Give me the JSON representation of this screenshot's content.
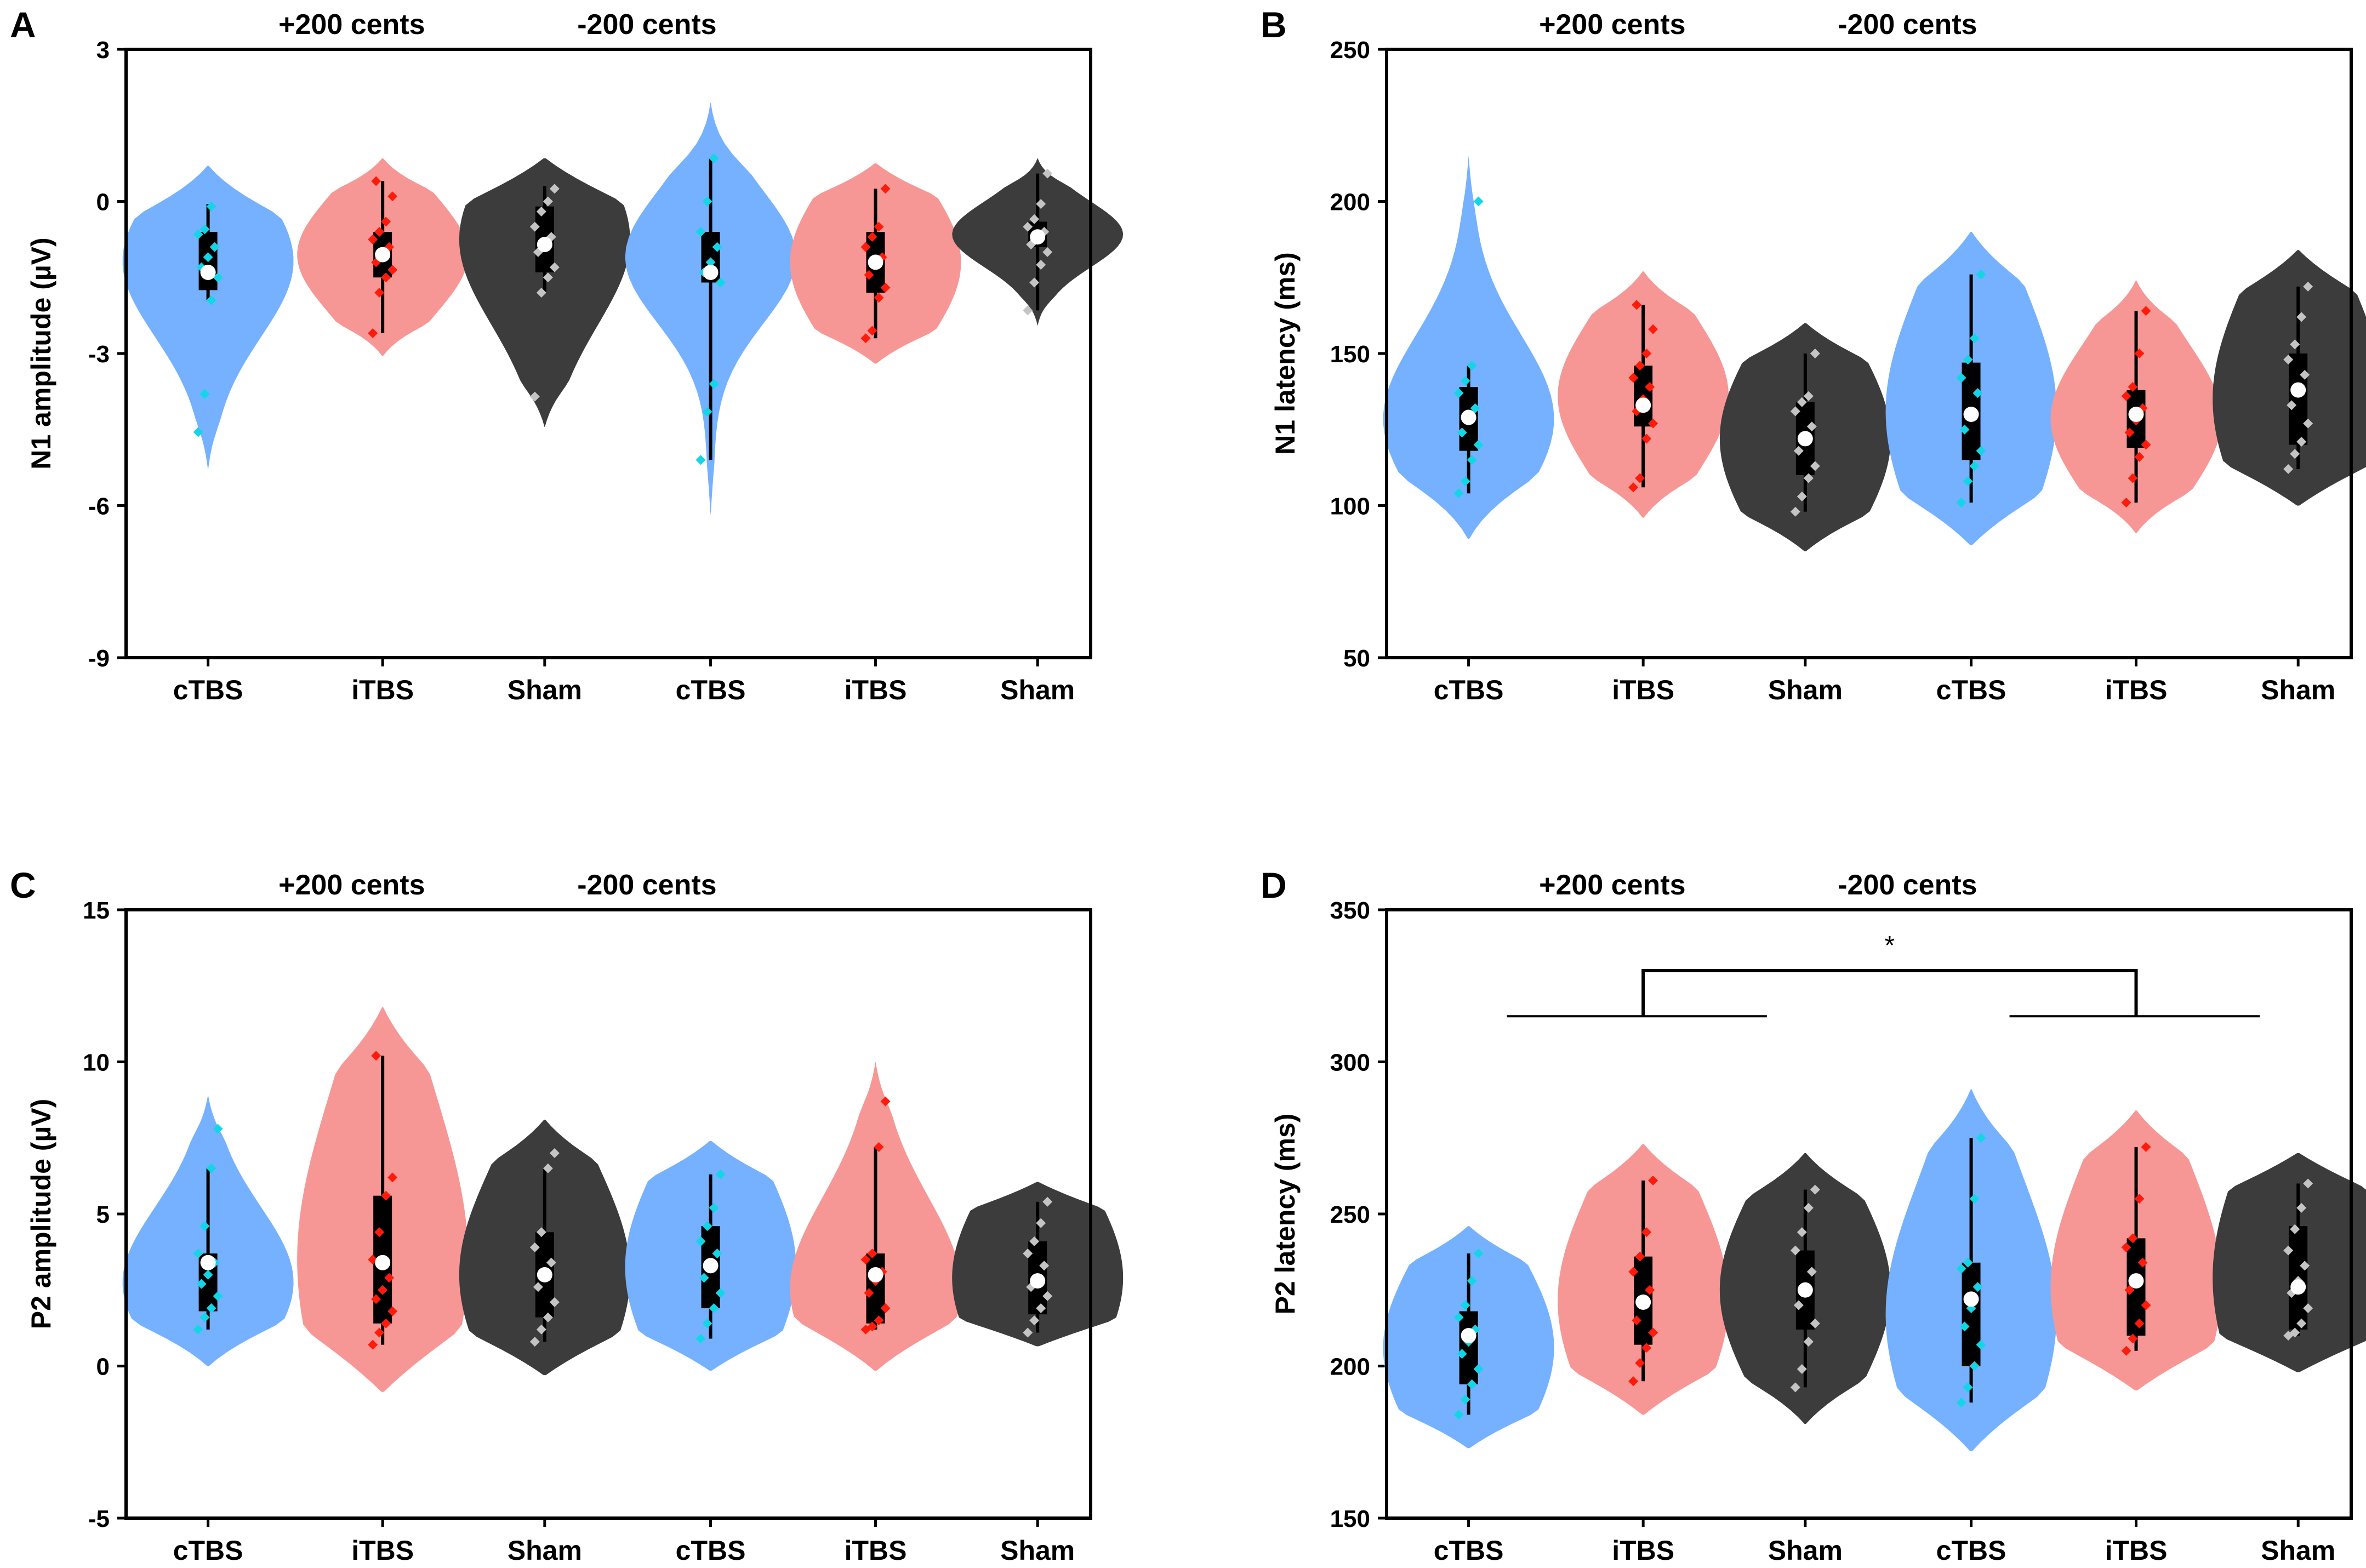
{
  "colors": {
    "ctbs_fill": "#75b1ff",
    "itbs_fill": "#f79795",
    "sham_fill": "#3c3c3c",
    "ctbs_dot": "#12d6e6",
    "itbs_dot": "#ff1a0a",
    "sham_dot": "#c4c4c4",
    "mean_dot": "#ffffff",
    "box": "#000000",
    "axis": "#000000"
  },
  "chart_data": [
    {
      "panel_label": "A",
      "type": "violin",
      "ylabel": "N1 amplitude (µV)",
      "ylim": [
        -9,
        3
      ],
      "yticks": [
        3,
        0,
        -3,
        -6,
        -9
      ],
      "ytick_labels": [
        "3",
        "0",
        "-3",
        "-6",
        "-9"
      ],
      "group_headers": [
        "+200 cents",
        "-200 cents"
      ],
      "categories": [
        "cTBS",
        "iTBS",
        "Sham",
        "cTBS",
        "iTBS",
        "Sham"
      ],
      "groups": [
        {
          "condition": "cTBS",
          "whisker_low": -1.95,
          "q1": -1.75,
          "median": -1.4,
          "q3": -0.6,
          "whisker_high": -0.05,
          "mean": -1.4,
          "violin_min": -5.3,
          "violin_max": 0.7,
          "points": [
            -4.55,
            -3.8,
            -1.95,
            -1.5,
            -1.3,
            -1.1,
            -0.9,
            -0.65,
            -0.55,
            -0.1
          ]
        },
        {
          "condition": "iTBS",
          "whisker_low": -2.6,
          "q1": -1.5,
          "median": -1.05,
          "q3": -0.6,
          "whisker_high": 0.4,
          "mean": -1.05,
          "violin_min": -3.05,
          "violin_max": 0.85,
          "points": [
            -2.6,
            -1.8,
            -1.5,
            -1.35,
            -1.2,
            -1.0,
            -0.9,
            -0.75,
            -0.6,
            -0.4,
            0.1,
            0.4
          ]
        },
        {
          "condition": "Sham",
          "whisker_low": -1.8,
          "q1": -1.4,
          "median": -0.85,
          "q3": -0.1,
          "whisker_high": 0.3,
          "mean": -0.85,
          "violin_min": -4.45,
          "violin_max": 0.85,
          "points": [
            -3.85,
            -1.8,
            -1.5,
            -1.3,
            -1.0,
            -0.85,
            -0.7,
            -0.5,
            -0.2,
            0.0,
            0.25
          ]
        },
        {
          "condition": "cTBS",
          "whisker_low": -5.1,
          "q1": -1.6,
          "median": -1.4,
          "q3": -0.6,
          "whisker_high": 0.85,
          "mean": -1.4,
          "violin_min": -6.2,
          "violin_max": 1.95,
          "points": [
            -5.1,
            -4.15,
            -3.6,
            -1.6,
            -1.4,
            -1.2,
            -0.9,
            -0.6,
            0.0,
            0.85
          ]
        },
        {
          "condition": "iTBS",
          "whisker_low": -2.7,
          "q1": -1.8,
          "median": -1.2,
          "q3": -0.6,
          "whisker_high": 0.25,
          "mean": -1.2,
          "violin_min": -3.2,
          "violin_max": 0.75,
          "points": [
            -2.7,
            -2.55,
            -1.9,
            -1.7,
            -1.45,
            -1.25,
            -1.1,
            -0.9,
            -0.7,
            -0.5,
            0.25
          ]
        },
        {
          "condition": "Sham",
          "whisker_low": -2.15,
          "q1": -0.9,
          "median": -0.7,
          "q3": -0.4,
          "whisker_high": 0.55,
          "mean": -0.7,
          "violin_min": -2.45,
          "violin_max": 0.85,
          "points": [
            -2.15,
            -1.6,
            -1.25,
            -1.0,
            -0.85,
            -0.7,
            -0.6,
            -0.5,
            -0.35,
            -0.05,
            0.55
          ]
        }
      ]
    },
    {
      "panel_label": "B",
      "type": "violin",
      "ylabel": "N1 latency (ms)",
      "ylim": [
        50,
        250
      ],
      "yticks": [
        250,
        200,
        150,
        100,
        50
      ],
      "ytick_labels": [
        "250",
        "200",
        "150",
        "100",
        "50"
      ],
      "group_headers": [
        "+200 cents",
        "-200 cents"
      ],
      "categories": [
        "cTBS",
        "iTBS",
        "Sham",
        "cTBS",
        "iTBS",
        "Sham"
      ],
      "groups": [
        {
          "condition": "cTBS",
          "whisker_low": 104,
          "q1": 118,
          "median": 128,
          "q3": 139,
          "whisker_high": 146,
          "mean": 129,
          "violin_min": 89,
          "violin_max": 215,
          "points": [
            104,
            108,
            115,
            120,
            124,
            128,
            132,
            137,
            141,
            146,
            200
          ]
        },
        {
          "condition": "iTBS",
          "whisker_low": 106,
          "q1": 126,
          "median": 133,
          "q3": 146,
          "whisker_high": 166,
          "mean": 133,
          "violin_min": 96,
          "violin_max": 177,
          "points": [
            106,
            109,
            122,
            127,
            131,
            135,
            139,
            142,
            146,
            150,
            158,
            166
          ]
        },
        {
          "condition": "Sham",
          "whisker_low": 98,
          "q1": 110,
          "median": 122,
          "q3": 134,
          "whisker_high": 150,
          "mean": 122,
          "violin_min": 85,
          "violin_max": 160,
          "points": [
            98,
            103,
            109,
            113,
            118,
            122,
            126,
            131,
            134,
            136,
            150
          ]
        },
        {
          "condition": "cTBS",
          "whisker_low": 101,
          "q1": 115,
          "median": 126,
          "q3": 147,
          "whisker_high": 176,
          "mean": 130,
          "violin_min": 87,
          "violin_max": 190,
          "points": [
            101,
            108,
            113,
            118,
            125,
            130,
            137,
            142,
            148,
            155,
            176
          ]
        },
        {
          "condition": "iTBS",
          "whisker_low": 101,
          "q1": 119,
          "median": 128,
          "q3": 138,
          "whisker_high": 164,
          "mean": 130,
          "violin_min": 91,
          "violin_max": 174,
          "points": [
            101,
            109,
            116,
            120,
            124,
            128,
            132,
            136,
            139,
            150,
            164
          ]
        },
        {
          "condition": "Sham",
          "whisker_low": 112,
          "q1": 120,
          "median": 138,
          "q3": 150,
          "whisker_high": 172,
          "mean": 138,
          "violin_min": 100,
          "violin_max": 184,
          "points": [
            112,
            117,
            121,
            127,
            133,
            138,
            143,
            148,
            153,
            162,
            172
          ]
        }
      ]
    },
    {
      "panel_label": "C",
      "type": "violin",
      "ylabel": "P2 amplitude (µV)",
      "ylim": [
        -5,
        15
      ],
      "yticks": [
        15,
        10,
        5,
        0,
        -5
      ],
      "ytick_labels": [
        "15",
        "10",
        "5",
        "0",
        "-5"
      ],
      "group_headers": [
        "+200 cents",
        "-200 cents"
      ],
      "categories": [
        "cTBS",
        "iTBS",
        "Sham",
        "cTBS",
        "iTBS",
        "Sham"
      ],
      "groups": [
        {
          "condition": "cTBS",
          "whisker_low": 1.2,
          "q1": 1.8,
          "median": 3.0,
          "q3": 3.7,
          "whisker_high": 6.5,
          "mean": 3.4,
          "violin_min": 0.0,
          "violin_max": 8.9,
          "points": [
            1.2,
            1.6,
            1.9,
            2.3,
            2.7,
            3.0,
            3.4,
            3.7,
            4.6,
            6.5,
            7.8
          ]
        },
        {
          "condition": "iTBS",
          "whisker_low": 0.7,
          "q1": 1.4,
          "median": 2.5,
          "q3": 5.6,
          "whisker_high": 10.2,
          "mean": 3.4,
          "violin_min": -0.85,
          "violin_max": 11.8,
          "points": [
            0.7,
            1.1,
            1.4,
            1.8,
            2.2,
            2.5,
            2.9,
            3.5,
            4.4,
            5.6,
            6.2,
            10.2
          ]
        },
        {
          "condition": "Sham",
          "whisker_low": 0.8,
          "q1": 1.6,
          "median": 3.0,
          "q3": 4.4,
          "whisker_high": 6.5,
          "mean": 3.0,
          "violin_min": -0.3,
          "violin_max": 8.1,
          "points": [
            0.8,
            1.2,
            1.6,
            2.1,
            2.6,
            3.0,
            3.4,
            3.9,
            4.4,
            6.5,
            7.0
          ]
        },
        {
          "condition": "cTBS",
          "whisker_low": 0.9,
          "q1": 1.9,
          "median": 3.3,
          "q3": 4.6,
          "whisker_high": 6.3,
          "mean": 3.3,
          "violin_min": -0.15,
          "violin_max": 7.4,
          "points": [
            0.9,
            1.4,
            1.9,
            2.4,
            2.9,
            3.3,
            3.7,
            4.1,
            4.6,
            5.2,
            6.3
          ]
        },
        {
          "condition": "iTBS",
          "whisker_low": 1.2,
          "q1": 1.4,
          "median": 2.8,
          "q3": 3.7,
          "whisker_high": 7.2,
          "mean": 3.0,
          "violin_min": -0.15,
          "violin_max": 10.0,
          "points": [
            1.2,
            1.3,
            1.5,
            1.9,
            2.4,
            2.8,
            3.1,
            3.5,
            3.7,
            7.2,
            8.7
          ]
        },
        {
          "condition": "Sham",
          "whisker_low": 1.1,
          "q1": 1.7,
          "median": 2.8,
          "q3": 4.1,
          "whisker_high": 5.4,
          "mean": 2.8,
          "violin_min": 0.65,
          "violin_max": 6.05,
          "points": [
            1.1,
            1.5,
            1.9,
            2.3,
            2.6,
            2.9,
            3.3,
            3.7,
            4.1,
            4.7,
            5.4
          ]
        }
      ]
    },
    {
      "panel_label": "D",
      "type": "violin",
      "ylabel": "P2 latency (ms)",
      "ylim": [
        150,
        350
      ],
      "yticks": [
        350,
        300,
        250,
        200,
        150
      ],
      "ytick_labels": [
        "350",
        "300",
        "250",
        "200",
        "150"
      ],
      "group_headers": [
        "+200 cents",
        "-200 cents"
      ],
      "categories": [
        "cTBS",
        "iTBS",
        "Sham",
        "cTBS",
        "iTBS",
        "Sham"
      ],
      "significance": {
        "label": "*",
        "bracket_y": 330,
        "group_line_y": 315
      },
      "groups": [
        {
          "condition": "cTBS",
          "whisker_low": 184,
          "q1": 194,
          "median": 206,
          "q3": 218,
          "whisker_high": 237,
          "mean": 210,
          "violin_min": 173,
          "violin_max": 246,
          "points": [
            184,
            189,
            194,
            199,
            204,
            208,
            212,
            216,
            220,
            228,
            237
          ]
        },
        {
          "condition": "iTBS",
          "whisker_low": 195,
          "q1": 207,
          "median": 222,
          "q3": 236,
          "whisker_high": 261,
          "mean": 221,
          "violin_min": 184,
          "violin_max": 273,
          "points": [
            195,
            201,
            206,
            211,
            215,
            220,
            225,
            231,
            236,
            244,
            261
          ]
        },
        {
          "condition": "Sham",
          "whisker_low": 193,
          "q1": 212,
          "median": 225,
          "q3": 238,
          "whisker_high": 258,
          "mean": 225,
          "violin_min": 181,
          "violin_max": 270,
          "points": [
            193,
            199,
            208,
            214,
            220,
            225,
            231,
            238,
            244,
            252,
            258
          ]
        },
        {
          "condition": "cTBS",
          "whisker_low": 188,
          "q1": 200,
          "median": 219,
          "q3": 234,
          "whisker_high": 275,
          "mean": 222,
          "violin_min": 172,
          "violin_max": 291,
          "points": [
            188,
            193,
            200,
            207,
            213,
            219,
            226,
            232,
            234,
            255,
            275
          ]
        },
        {
          "condition": "iTBS",
          "whisker_low": 205,
          "q1": 210,
          "median": 228,
          "q3": 242,
          "whisker_high": 272,
          "mean": 228,
          "violin_min": 192,
          "violin_max": 284,
          "points": [
            205,
            209,
            214,
            220,
            225,
            229,
            234,
            239,
            242,
            255,
            272
          ]
        },
        {
          "condition": "Sham",
          "whisker_low": 210,
          "q1": 212,
          "median": 226,
          "q3": 246,
          "whisker_high": 260,
          "mean": 226,
          "violin_min": 198,
          "violin_max": 270,
          "points": [
            210,
            211,
            214,
            219,
            224,
            228,
            233,
            238,
            245,
            252,
            260
          ]
        }
      ]
    }
  ]
}
